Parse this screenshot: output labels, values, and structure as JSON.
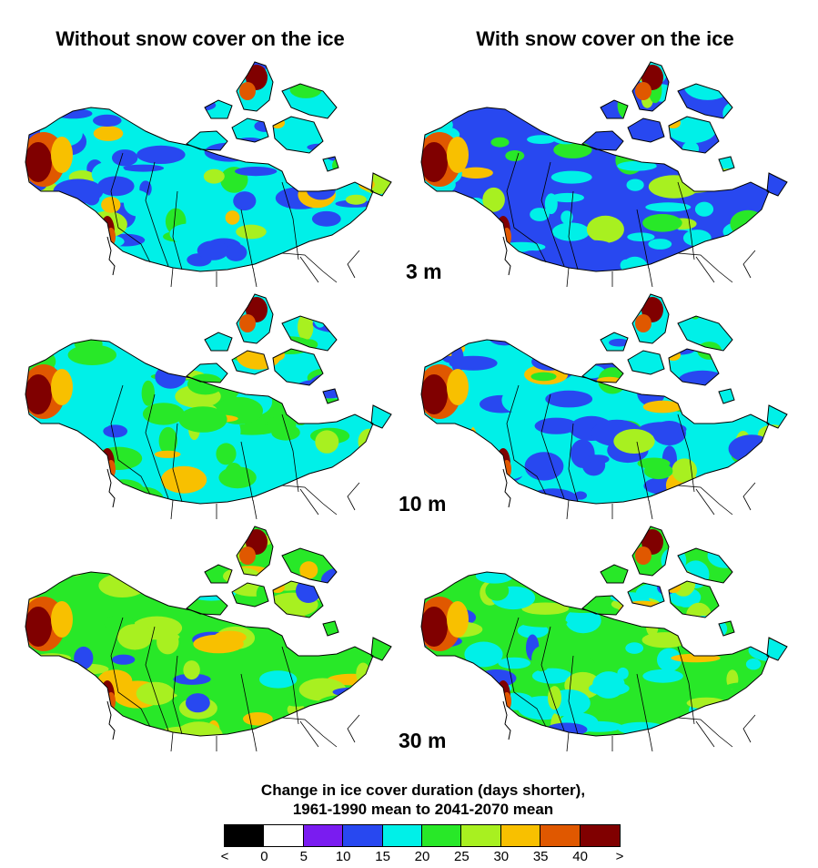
{
  "titles": {
    "left": "Without snow cover on the ice",
    "right": "With snow cover on the ice"
  },
  "depths": [
    "3 m",
    "10 m",
    "30 m"
  ],
  "legend": {
    "title_line1": "Change in ice cover duration (days shorter),",
    "title_line2": "1961-1990 mean to 2041-2070 mean",
    "colors": [
      "#000000",
      "#ffffff",
      "#7a1cf0",
      "#2848f0",
      "#00f0e8",
      "#28e828",
      "#a8f020",
      "#f8c000",
      "#e05800",
      "#800000"
    ],
    "tick_labels": [
      "<",
      "0",
      "5",
      "10",
      "15",
      "20",
      "25",
      "30",
      "35",
      "40",
      ">"
    ]
  },
  "panels": [
    {
      "column": "without-snow",
      "depth": "3 m",
      "dominant_class": "15-20",
      "secondary_class": "10-15"
    },
    {
      "column": "with-snow",
      "depth": "3 m",
      "dominant_class": "10-15",
      "secondary_class": "15-20"
    },
    {
      "column": "without-snow",
      "depth": "10 m",
      "dominant_class": "15-20",
      "secondary_class": "20-25"
    },
    {
      "column": "with-snow",
      "depth": "10 m",
      "dominant_class": "15-20",
      "secondary_class": "10-15"
    },
    {
      "column": "without-snow",
      "depth": "30 m",
      "dominant_class": "20-25",
      "secondary_class": "25-30"
    },
    {
      "column": "with-snow",
      "depth": "30 m",
      "dominant_class": "20-25",
      "secondary_class": "15-20"
    }
  ]
}
